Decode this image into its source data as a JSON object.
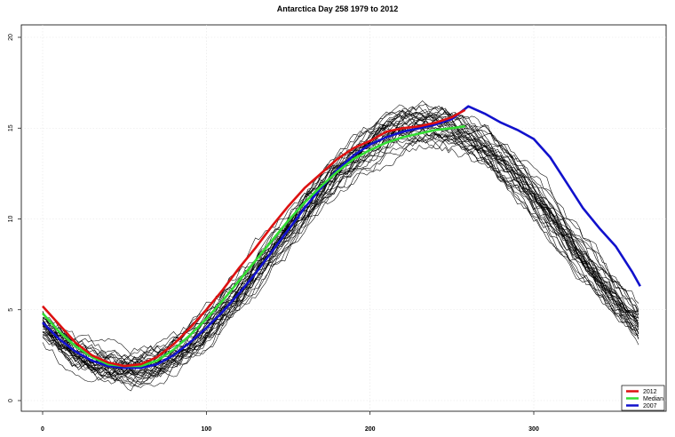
{
  "chart_data": {
    "type": "line",
    "title": "Antarctica Day 258 1979 to 2012",
    "xlabel": "",
    "ylabel": "",
    "xlim": [
      0,
      365
    ],
    "ylim": [
      0,
      20
    ],
    "x_ticks": [
      0,
      100,
      200,
      300
    ],
    "y_ticks": [
      0,
      5,
      10,
      15,
      20
    ],
    "grid": true,
    "legend_position": "bottom-right",
    "legend": [
      {
        "name": "2012",
        "color": "#dd1111"
      },
      {
        "name": "Median",
        "color": "#33dd33"
      },
      {
        "name": "2007",
        "color": "#1111cc"
      }
    ],
    "background_series_count": 32,
    "background_color": "#000000",
    "series": [
      {
        "name": "2007",
        "color": "#1111cc",
        "x": [
          0,
          10,
          20,
          30,
          40,
          50,
          60,
          70,
          80,
          90,
          100,
          110,
          120,
          130,
          140,
          150,
          160,
          170,
          180,
          190,
          200,
          210,
          220,
          230,
          240,
          250,
          260,
          270,
          280,
          290,
          300,
          310,
          320,
          330,
          340,
          350,
          360,
          365
        ],
        "y": [
          4.3,
          3.4,
          2.7,
          2.2,
          1.9,
          1.8,
          1.8,
          2.0,
          2.5,
          3.2,
          4.0,
          4.9,
          5.9,
          7.0,
          8.2,
          9.4,
          10.6,
          11.7,
          12.7,
          13.5,
          14.1,
          14.5,
          14.8,
          15.0,
          15.2,
          15.5,
          16.2,
          15.8,
          15.3,
          14.9,
          14.4,
          13.4,
          12.0,
          10.6,
          9.5,
          8.5,
          7.1,
          6.3
        ]
      },
      {
        "name": "2012",
        "color": "#dd1111",
        "x": [
          0,
          10,
          20,
          30,
          40,
          50,
          60,
          70,
          80,
          90,
          100,
          110,
          120,
          130,
          140,
          150,
          160,
          170,
          180,
          190,
          200,
          210,
          220,
          230,
          240,
          250,
          258
        ],
        "y": [
          5.2,
          4.2,
          3.2,
          2.5,
          2.1,
          1.9,
          2.0,
          2.4,
          3.1,
          4.0,
          5.0,
          6.1,
          7.3,
          8.4,
          9.6,
          10.7,
          11.7,
          12.5,
          13.3,
          13.9,
          14.3,
          14.8,
          15.0,
          15.1,
          15.3,
          15.6,
          16.0
        ]
      },
      {
        "name": "Median",
        "color": "#33dd33",
        "x": [
          0,
          10,
          20,
          30,
          40,
          50,
          60,
          70,
          80,
          90,
          100,
          110,
          120,
          130,
          140,
          150,
          160,
          170,
          180,
          190,
          200,
          210,
          220,
          230,
          240,
          250,
          258
        ],
        "y": [
          4.8,
          3.8,
          3.0,
          2.4,
          2.0,
          1.9,
          1.9,
          2.2,
          2.8,
          3.6,
          4.5,
          5.5,
          6.6,
          7.7,
          8.8,
          9.9,
          10.9,
          11.8,
          12.6,
          13.3,
          13.8,
          14.2,
          14.5,
          14.7,
          14.9,
          15.0,
          15.1
        ]
      }
    ]
  }
}
